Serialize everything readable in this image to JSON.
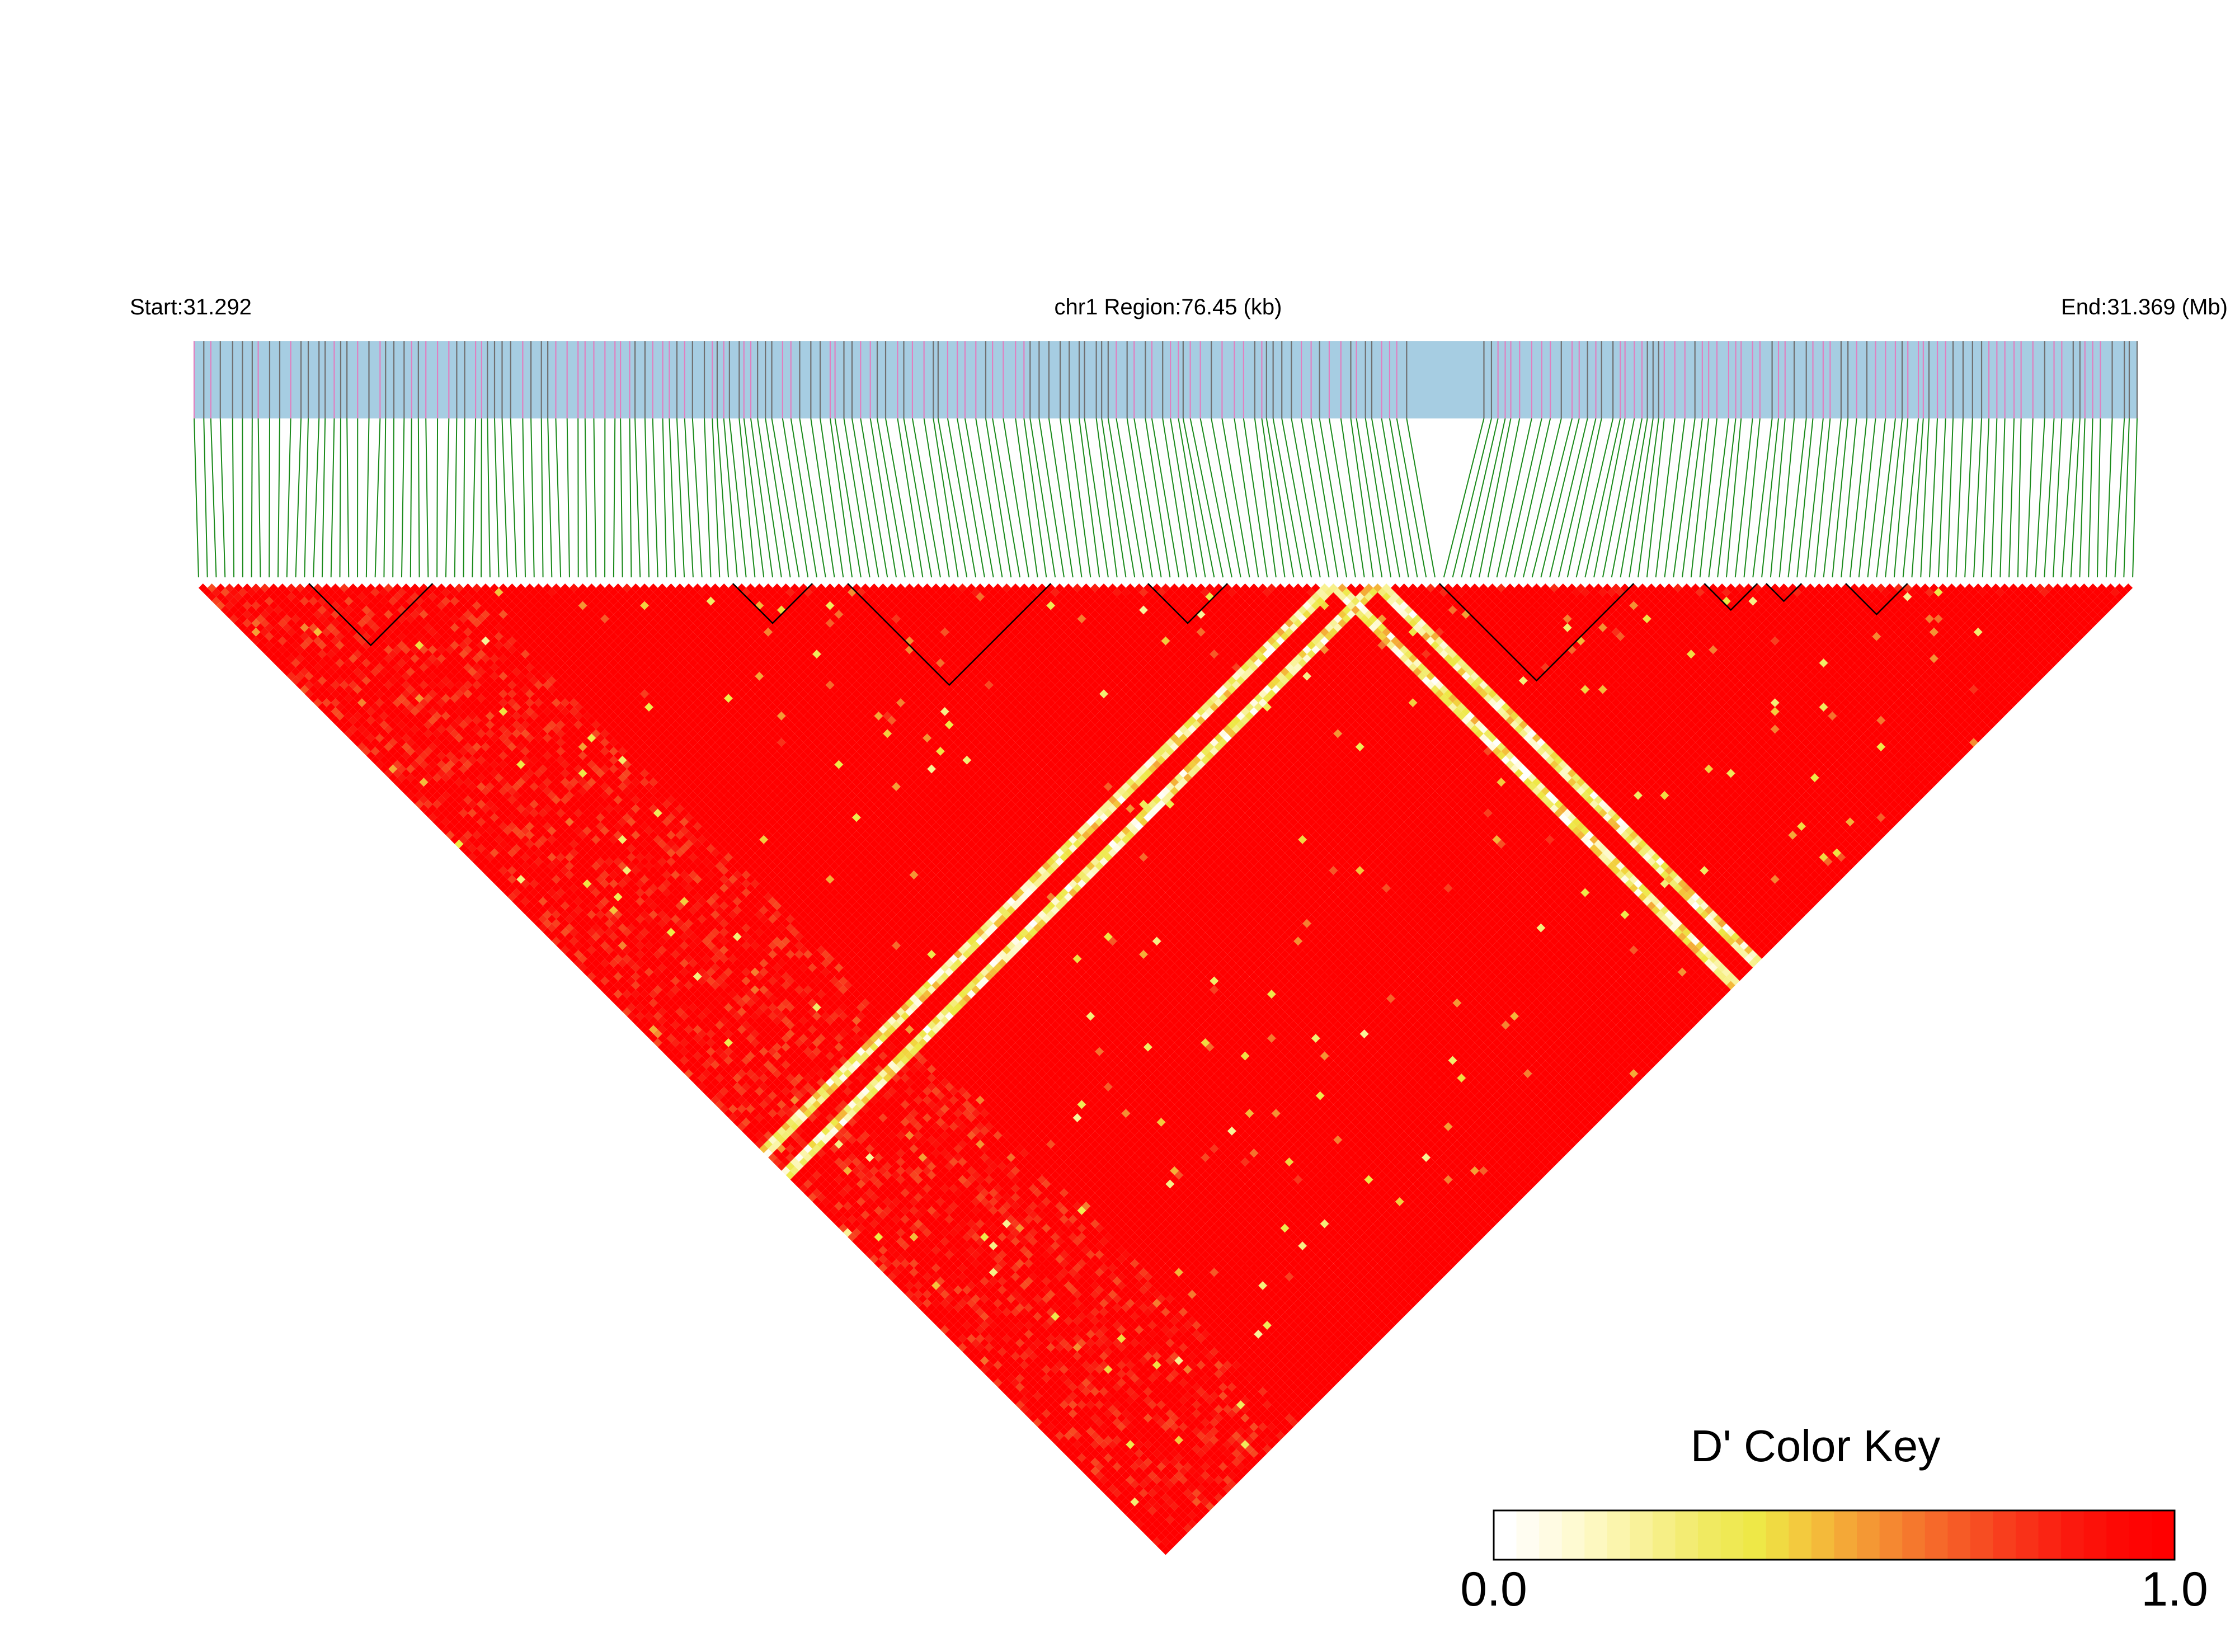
{
  "header": {
    "start_label": "Start:31.292",
    "region_label": "chr1 Region:76.45 (kb)",
    "end_label": "End:31.369 (Mb)"
  },
  "colors": {
    "track_bg": "#a6cde2",
    "snp_highlight": "#e080c0",
    "snp_normal": "#707070",
    "connector": "#1a8a1a",
    "high": "#ff0000",
    "low": "#ffffff"
  },
  "chart_data": {
    "type": "heatmap",
    "snp_count": 220,
    "ld_bands": [
      {
        "snp": 128,
        "value_range": [
          0.0,
          0.4
        ]
      },
      {
        "snp": 133,
        "value_range": [
          0.0,
          0.4
        ]
      }
    ],
    "haplotype_blocks": [
      {
        "start": 13,
        "end": 26
      },
      {
        "start": 61,
        "end": 69
      },
      {
        "start": 74,
        "end": 96
      },
      {
        "start": 108,
        "end": 116
      },
      {
        "start": 141,
        "end": 162
      },
      {
        "start": 171,
        "end": 176
      },
      {
        "start": 178,
        "end": 181
      },
      {
        "start": 187,
        "end": 193
      }
    ]
  },
  "color_key": {
    "title": "D' Color Key",
    "min_label": "0.0",
    "max_label": "1.0",
    "stops": [
      "#ffffff",
      "#fffbe0",
      "#fcf7b8",
      "#f7f08c",
      "#f0ea62",
      "#eee845",
      "#f4c43c",
      "#f49e35",
      "#f57a2e",
      "#f65a26",
      "#f83a1c",
      "#fa1d10",
      "#fd0a06",
      "#ff0000"
    ]
  }
}
